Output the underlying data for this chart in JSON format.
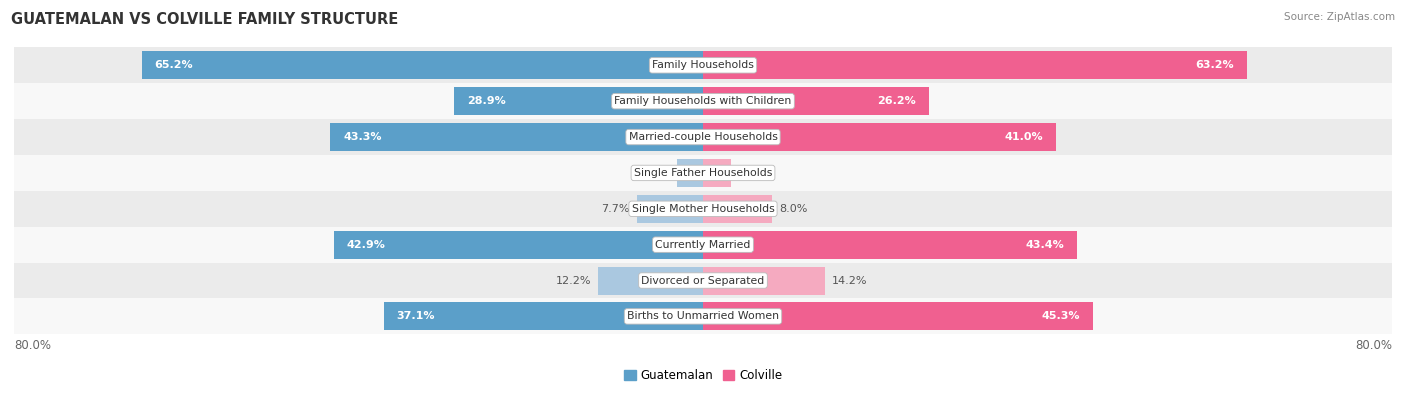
{
  "title": "GUATEMALAN VS COLVILLE FAMILY STRUCTURE",
  "source": "Source: ZipAtlas.com",
  "categories": [
    "Family Households",
    "Family Households with Children",
    "Married-couple Households",
    "Single Father Households",
    "Single Mother Households",
    "Currently Married",
    "Divorced or Separated",
    "Births to Unmarried Women"
  ],
  "guatemalan": [
    65.2,
    28.9,
    43.3,
    3.0,
    7.7,
    42.9,
    12.2,
    37.1
  ],
  "colville": [
    63.2,
    26.2,
    41.0,
    3.3,
    8.0,
    43.4,
    14.2,
    45.3
  ],
  "max_val": 80.0,
  "color_guatemalan_dark": "#5b9fc9",
  "color_colville_dark": "#f06090",
  "color_guatemalan_light": "#aac8e0",
  "color_colville_light": "#f5aac0",
  "bg_odd": "#ebebeb",
  "bg_even": "#f8f8f8",
  "label_inside_color": "#ffffff",
  "label_outside_color": "#555555",
  "inside_threshold": 15.0,
  "legend_guatemalan": "Guatemalan",
  "legend_colville": "Colville"
}
